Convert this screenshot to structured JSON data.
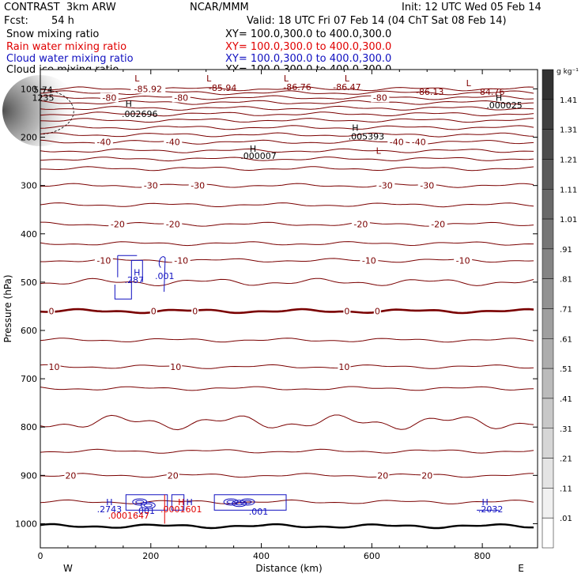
{
  "header": {
    "model": "CONTRAST  3km ARW",
    "center": "NCAR/MMM",
    "init": "Init: 12 UTC Wed 05 Feb 14",
    "fcst_label": "Fcst:",
    "fcst_value": "54 h",
    "valid": "Valid: 18 UTC Fri 07 Feb 14 (04 ChT Sat 08 Feb 14)"
  },
  "fields": [
    {
      "name": "Snow mixing ratio",
      "xy": "XY= 100.0,300.0 to 400.0,300.0",
      "color": "#000000"
    },
    {
      "name": "Rain water mixing ratio",
      "xy": "XY= 100.0,300.0 to 400.0,300.0",
      "color": "#e00000"
    },
    {
      "name": "Cloud water mixing ratio",
      "xy": "XY= 100.0,300.0 to 400.0,300.0",
      "color": "#1010c0"
    },
    {
      "name": "Cloud ice mixing ratio",
      "xy": "XY= 100.0,300.0 to 400.0,300.0",
      "color": "#000000"
    }
  ],
  "chart_data": {
    "type": "contour",
    "xlabel": "Distance (km)",
    "ylabel": "Pressure (hPa)",
    "xlim": [
      0,
      900
    ],
    "ylim": [
      1050,
      60
    ],
    "xticks": [
      0,
      200,
      400,
      600,
      800
    ],
    "yticks": [
      100,
      200,
      300,
      400,
      500,
      600,
      700,
      800,
      900,
      1000
    ],
    "x_end_labels": {
      "left": "W",
      "right": "E"
    },
    "colorbar": {
      "unit": "g kg⁻¹",
      "labels": [
        "1.41",
        "1.31",
        "1.21",
        "1.11",
        "1.01",
        ".91",
        ".81",
        ".71",
        ".61",
        ".51",
        ".41",
        ".31",
        ".21",
        ".11",
        ".01"
      ]
    },
    "temperature_contours": [
      {
        "p": 100,
        "label": "-85.92",
        "x": 195
      },
      {
        "p": 118,
        "label": "-80",
        "x": 125
      },
      {
        "p": 118,
        "label": "-80",
        "x": 255
      },
      {
        "p": 118,
        "label": "-80",
        "x": 615
      },
      {
        "p": 210,
        "label": "-40",
        "x": 115
      },
      {
        "p": 210,
        "label": "-40",
        "x": 240
      },
      {
        "p": 210,
        "label": "-40",
        "x": 645
      },
      {
        "p": 210,
        "label": "-40",
        "x": 685
      },
      {
        "p": 300,
        "label": "-30",
        "x": 200
      },
      {
        "p": 300,
        "label": "-30",
        "x": 285
      },
      {
        "p": 300,
        "label": "-30",
        "x": 625
      },
      {
        "p": 300,
        "label": "-30",
        "x": 700
      },
      {
        "p": 380,
        "label": "-20",
        "x": 140
      },
      {
        "p": 380,
        "label": "-20",
        "x": 240
      },
      {
        "p": 380,
        "label": "-20",
        "x": 580
      },
      {
        "p": 380,
        "label": "-20",
        "x": 720
      },
      {
        "p": 455,
        "label": "-10",
        "x": 115
      },
      {
        "p": 455,
        "label": "-10",
        "x": 255
      },
      {
        "p": 455,
        "label": "-10",
        "x": 595
      },
      {
        "p": 455,
        "label": "-10",
        "x": 765
      },
      {
        "p": 560,
        "label": "0",
        "x": 20
      },
      {
        "p": 560,
        "label": "0",
        "x": 205
      },
      {
        "p": 560,
        "label": "0",
        "x": 280
      },
      {
        "p": 560,
        "label": "0",
        "x": 555
      },
      {
        "p": 560,
        "label": "0",
        "x": 610
      },
      {
        "p": 675,
        "label": "10",
        "x": 25
      },
      {
        "p": 675,
        "label": "10",
        "x": 245
      },
      {
        "p": 675,
        "label": "10",
        "x": 550
      },
      {
        "p": 900,
        "label": "20",
        "x": 55
      },
      {
        "p": 900,
        "label": "20",
        "x": 240
      },
      {
        "p": 900,
        "label": "20",
        "x": 620
      },
      {
        "p": 900,
        "label": "20",
        "x": 700
      }
    ],
    "extrema_labels": [
      {
        "kind": "L",
        "x": 175,
        "p": 78,
        "color": "#800000"
      },
      {
        "kind": "L",
        "x": 305,
        "p": 78,
        "color": "#800000"
      },
      {
        "kind": "L",
        "x": 445,
        "p": 78,
        "color": "#800000"
      },
      {
        "kind": "L",
        "x": 555,
        "p": 78,
        "color": "#800000"
      },
      {
        "kind": "L",
        "x": 775,
        "p": 88,
        "color": "#800000"
      },
      {
        "kind": "-85.94",
        "x": 330,
        "p": 98,
        "color": "#800000"
      },
      {
        "kind": "-86.76",
        "x": 465,
        "p": 96,
        "color": "#800000"
      },
      {
        "kind": "-86.47",
        "x": 555,
        "p": 96,
        "color": "#800000"
      },
      {
        "kind": "-86.13",
        "x": 705,
        "p": 106,
        "color": "#800000"
      },
      {
        "kind": "-84.76",
        "x": 815,
        "p": 106,
        "color": "#800000"
      },
      {
        "kind": "L",
        "x": 612,
        "p": 228,
        "color": "#800000"
      },
      {
        "kind": "H",
        "x": 160,
        "p": 130,
        "color": "#000000"
      },
      {
        "kind": ".002696",
        "x": 180,
        "p": 152,
        "color": "#000000"
      },
      {
        "kind": "H",
        "x": 830,
        "p": 118,
        "color": "#000000"
      },
      {
        "kind": ".000025",
        "x": 840,
        "p": 134,
        "color": "#000000"
      },
      {
        "kind": "H",
        "x": 570,
        "p": 180,
        "color": "#000000"
      },
      {
        "kind": ".005393",
        "x": 590,
        "p": 198,
        "color": "#000000"
      },
      {
        "kind": "H",
        "x": 385,
        "p": 224,
        "color": "#000000"
      },
      {
        "kind": ".000007",
        "x": 395,
        "p": 238,
        "color": "#000000"
      },
      {
        "kind": "5.74",
        "x": 5,
        "p": 102,
        "color": "#000000"
      },
      {
        "kind": "1235",
        "x": 5,
        "p": 118,
        "color": "#000000"
      },
      {
        "kind": "H",
        "x": 175,
        "p": 480,
        "color": "#1010c0"
      },
      {
        "kind": ".287",
        "x": 170,
        "p": 495,
        "color": "#1010c0"
      },
      {
        "kind": ".001",
        "x": 225,
        "p": 487,
        "color": "#1010c0"
      },
      {
        "kind": "H",
        "x": 125,
        "p": 955,
        "color": "#1010c0"
      },
      {
        "kind": ".2743",
        "x": 125,
        "p": 970,
        "color": "#1010c0"
      },
      {
        "kind": ".001",
        "x": 190,
        "p": 973,
        "color": "#1010c0"
      },
      {
        "kind": ".0001647",
        "x": 160,
        "p": 983,
        "color": "#e00000"
      },
      {
        "kind": "H",
        "x": 255,
        "p": 955,
        "color": "#e00000"
      },
      {
        "kind": "H",
        "x": 270,
        "p": 955,
        "color": "#1010c0"
      },
      {
        "kind": ".0001601",
        "x": 255,
        "p": 970,
        "color": "#e00000"
      },
      {
        "kind": ".001",
        "x": 395,
        "p": 975,
        "color": "#1010c0"
      },
      {
        "kind": "H",
        "x": 805,
        "p": 955,
        "color": "#1010c0"
      },
      {
        "kind": ".2032",
        "x": 815,
        "p": 970,
        "color": "#1010c0"
      }
    ]
  }
}
